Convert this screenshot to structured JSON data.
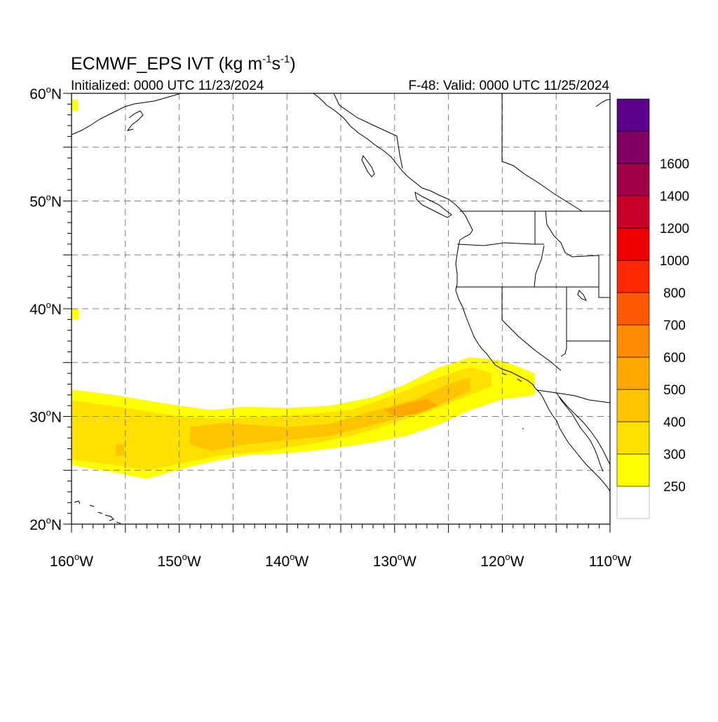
{
  "header": {
    "title_prefix": "ECMWF_EPS IVT (kg m",
    "title_sup1": "-1",
    "title_mid": "s",
    "title_sup2": "-1",
    "title_suffix": ")",
    "initialized": "Initialized: 0000 UTC 11/23/2024",
    "valid": "F-48: Valid: 0000 UTC 11/25/2024"
  },
  "map": {
    "region": "Eastern North Pacific / US West Coast",
    "lon_range": [
      -160,
      -110
    ],
    "lat_range": [
      20,
      60
    ],
    "grid": "dashed gray every 5 degrees",
    "lat_labels": [
      {
        "lat": 60,
        "num": "60",
        "hemi": "N"
      },
      {
        "lat": 50,
        "num": "50",
        "hemi": "N"
      },
      {
        "lat": 40,
        "num": "40",
        "hemi": "N"
      },
      {
        "lat": 30,
        "num": "30",
        "hemi": "N"
      },
      {
        "lat": 20,
        "num": "20",
        "hemi": "N"
      }
    ],
    "lon_labels": [
      {
        "lon": -160,
        "num": "160",
        "hemi": "W"
      },
      {
        "lon": -150,
        "num": "150",
        "hemi": "W"
      },
      {
        "lon": -140,
        "num": "140",
        "hemi": "W"
      },
      {
        "lon": -130,
        "num": "130",
        "hemi": "W"
      },
      {
        "lon": -120,
        "num": "120",
        "hemi": "W"
      },
      {
        "lon": -110,
        "num": "110",
        "hemi": "W"
      }
    ],
    "atmospheric_river": {
      "description": "IVT plume extending from west of Hawaii latitude toward southern California",
      "north_edge": [
        [
          -160,
          32.5
        ],
        [
          -156,
          32.0
        ],
        [
          -153,
          31.5
        ],
        [
          -150,
          31.0
        ],
        [
          -147,
          30.6
        ],
        [
          -144,
          30.9
        ],
        [
          -140,
          30.8
        ],
        [
          -136,
          31.0
        ],
        [
          -132,
          31.8
        ],
        [
          -129,
          33.0
        ],
        [
          -126,
          34.5
        ],
        [
          -123,
          35.5
        ],
        [
          -120,
          35.2
        ],
        [
          -117,
          34.0
        ]
      ],
      "south_edge": [
        [
          -117,
          32.0
        ],
        [
          -120,
          31.6
        ],
        [
          -123,
          30.6
        ],
        [
          -126,
          29.2
        ],
        [
          -129,
          28.2
        ],
        [
          -132,
          27.6
        ],
        [
          -136,
          27.0
        ],
        [
          -140,
          26.6
        ],
        [
          -144,
          26.4
        ],
        [
          -147,
          25.8
        ],
        [
          -150,
          25.1
        ],
        [
          -153,
          24.2
        ],
        [
          -156,
          24.8
        ],
        [
          -160,
          25.5
        ]
      ],
      "core_300_north": [
        [
          -160,
          31.5
        ],
        [
          -155,
          30.8
        ],
        [
          -150,
          30.0
        ],
        [
          -146,
          29.8
        ],
        [
          -142,
          30.0
        ],
        [
          -138,
          30.2
        ],
        [
          -134,
          30.6
        ],
        [
          -130,
          32.0
        ],
        [
          -126,
          33.6
        ],
        [
          -123,
          34.6
        ],
        [
          -121,
          34.0
        ]
      ],
      "core_300_south": [
        [
          -121,
          32.8
        ],
        [
          -124,
          31.6
        ],
        [
          -127,
          30.4
        ],
        [
          -130,
          29.4
        ],
        [
          -134,
          28.2
        ],
        [
          -138,
          27.4
        ],
        [
          -142,
          26.8
        ],
        [
          -146,
          26.4
        ],
        [
          -150,
          25.6
        ],
        [
          -153,
          25.0
        ],
        [
          -156,
          25.5
        ],
        [
          -160,
          26.0
        ]
      ],
      "core_400_north": [
        [
          -149,
          29.0
        ],
        [
          -146,
          29.4
        ],
        [
          -143,
          29.2
        ],
        [
          -140,
          29.0
        ],
        [
          -136,
          29.3
        ],
        [
          -132,
          30.5
        ],
        [
          -128,
          31.6
        ],
        [
          -125,
          33.0
        ],
        [
          -123,
          33.6
        ]
      ],
      "core_400_south": [
        [
          -123,
          32.4
        ],
        [
          -126,
          31.0
        ],
        [
          -129,
          30.0
        ],
        [
          -132,
          29.2
        ],
        [
          -136,
          28.2
        ],
        [
          -140,
          27.8
        ],
        [
          -144,
          27.4
        ],
        [
          -147,
          26.8
        ],
        [
          -149,
          27.4
        ]
      ],
      "core_500": [
        [
          -131,
          30.6
        ],
        [
          -129,
          31.2
        ],
        [
          -127,
          31.6
        ],
        [
          -126,
          31.0
        ],
        [
          -128,
          30.2
        ],
        [
          -130,
          30.0
        ]
      ],
      "isolated_patches": [
        {
          "lon": -159.7,
          "lat": 39.5,
          "class": 250
        },
        {
          "lon": -159.8,
          "lat": 58.9,
          "class": 250
        },
        {
          "lon": -155.5,
          "lat": 26.9,
          "class": 350
        }
      ]
    },
    "states_note": "US state boundaries over CA, OR, WA, NV, ID, AZ"
  },
  "colorbar": {
    "colors": [
      "#ffffff",
      "#ffff00",
      "#ffe000",
      "#ffc400",
      "#ffa800",
      "#ff8c00",
      "#ff5a00",
      "#ff2800",
      "#ee0000",
      "#c80028",
      "#a00046",
      "#820064",
      "#5a008c"
    ],
    "labels": [
      "250",
      "300",
      "400",
      "500",
      "600",
      "700",
      "800",
      "1000",
      "1200",
      "1400",
      "1600"
    ]
  }
}
